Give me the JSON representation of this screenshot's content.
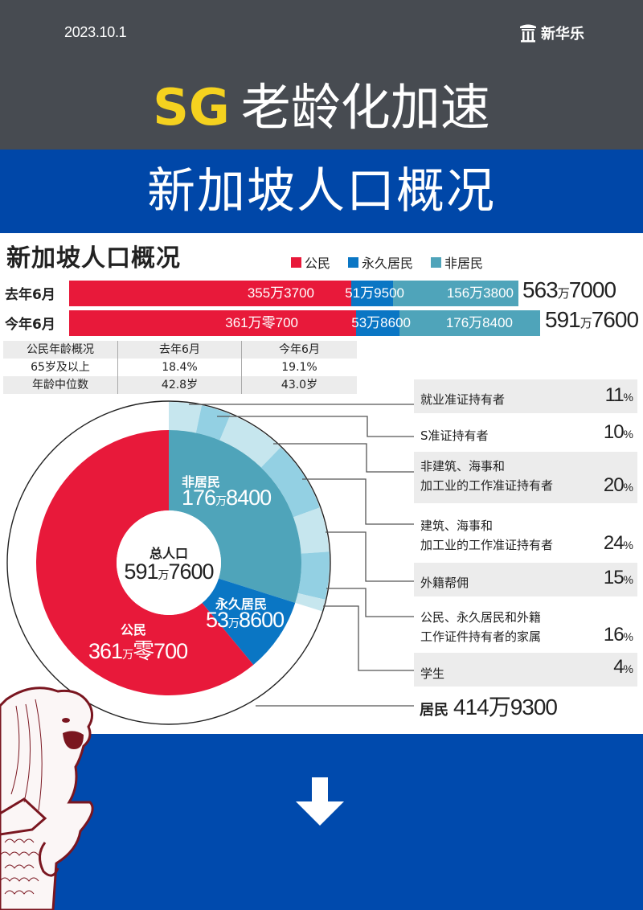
{
  "header": {
    "date": "2023.10.1",
    "brand": "新华乐",
    "brand_icon": "pillar-icon",
    "headline_prefix": "SG",
    "headline_rest": "老龄化加速"
  },
  "band": {
    "title": "新加坡人口概况"
  },
  "infographic": {
    "title": "新加坡人口概况",
    "legend": [
      {
        "label": "公民",
        "color": "#e8193a"
      },
      {
        "label": "永久居民",
        "color": "#0a76c4"
      },
      {
        "label": "非居民",
        "color": "#4fa4ba"
      }
    ],
    "bars": [
      {
        "label": "去年6月",
        "citizen": "355万3700",
        "pr": "51万9500",
        "nonres": "156万3800",
        "total_main": "563",
        "total_unit": "万",
        "total_tail": "7000"
      },
      {
        "label": "今年6月",
        "citizen": "361万零700",
        "pr": "53万8600",
        "nonres": "176万8400",
        "total_main": "591",
        "total_unit": "万",
        "total_tail": "7600"
      }
    ],
    "age_table": {
      "headers": [
        "公民年龄概况",
        "去年6月",
        "今年6月"
      ],
      "rows": [
        [
          "65岁及以上",
          "18.4%",
          "19.1%"
        ],
        [
          "年龄中位数",
          "42.8岁",
          "43.0岁"
        ]
      ]
    },
    "donut": {
      "center_label": "总人口",
      "center_main": "591",
      "center_unit": "万",
      "center_tail": "7600",
      "nonres_label": "非居民",
      "nonres_main": "176",
      "nonres_unit": "万",
      "nonres_tail": "8400",
      "pr_label": "永久居民",
      "pr_main": "53",
      "pr_unit": "万",
      "pr_tail": "8600",
      "citizen_label": "公民",
      "citizen_main": "361",
      "citizen_unit": "万",
      "citizen_tail": "零700"
    },
    "categories": [
      {
        "name_l1": "就业准证持有者",
        "name_l2": "",
        "pct": "11",
        "unit": "%"
      },
      {
        "name_l1": "S准证持有者",
        "name_l2": "",
        "pct": "10",
        "unit": "%"
      },
      {
        "name_l1": "非建筑、海事和",
        "name_l2": "加工业的工作准证持有者",
        "pct": "20",
        "unit": "%"
      },
      {
        "name_l1": "建筑、海事和",
        "name_l2": "加工业的工作准证持有者",
        "pct": "24",
        "unit": "%"
      },
      {
        "name_l1": "外籍帮佣",
        "name_l2": "",
        "pct": "15",
        "unit": "%"
      },
      {
        "name_l1": "公民、永久居民和外籍",
        "name_l2": "工作证件持有者的家属",
        "pct": "16",
        "unit": "%"
      },
      {
        "name_l1": "学生",
        "name_l2": "",
        "pct": "4",
        "unit": "%"
      }
    ],
    "residents": {
      "label": "居民",
      "value": "414万9300"
    }
  },
  "footer": {
    "arrow_icon": "down-arrow-icon"
  },
  "colors": {
    "header_bg": "#474b51",
    "band_bg": "#0047a8",
    "bottom_bg": "#004aad",
    "accent_yellow": "#f5d21f",
    "citizen": "#e8193a",
    "pr": "#0a76c4",
    "nonres": "#4fa4ba",
    "sub_light": "#c6e6ee",
    "sub_mid": "#93d0e3"
  },
  "chart_data": [
    {
      "type": "bar",
      "title": "新加坡人口概况",
      "orientation": "horizontal-stacked",
      "categories": [
        "去年6月",
        "今年6月"
      ],
      "series": [
        {
          "name": "公民",
          "values": [
            3553700,
            3610700
          ]
        },
        {
          "name": "永久居民",
          "values": [
            519500,
            538600
          ]
        },
        {
          "name": "非居民",
          "values": [
            1563800,
            1768400
          ]
        }
      ],
      "totals": [
        5637000,
        5917600
      ],
      "legend_position": "top"
    },
    {
      "type": "table",
      "title": "公民年龄概况",
      "columns": [
        "公民年龄概况",
        "去年6月",
        "今年6月"
      ],
      "rows": [
        [
          "65岁及以上",
          "18.4%",
          "19.1%"
        ],
        [
          "年龄中位数",
          "42.8岁",
          "43.0岁"
        ]
      ]
    },
    {
      "type": "pie",
      "title": "总人口 591万7600",
      "categories": [
        "非居民",
        "永久居民",
        "公民"
      ],
      "values": [
        1768400,
        538600,
        3610700
      ],
      "donut": true,
      "sub_breakdown": {
        "parent": "非居民",
        "categories": [
          "就业准证持有者",
          "S准证持有者",
          "非建筑、海事和加工业的工作准证持有者",
          "建筑、海事和加工业的工作准证持有者",
          "外籍帮佣",
          "公民、永久居民和外籍工作证件持有者的家属",
          "学生"
        ],
        "values_pct": [
          11,
          10,
          20,
          24,
          15,
          16,
          4
        ]
      },
      "residents_total": 4149300
    }
  ]
}
